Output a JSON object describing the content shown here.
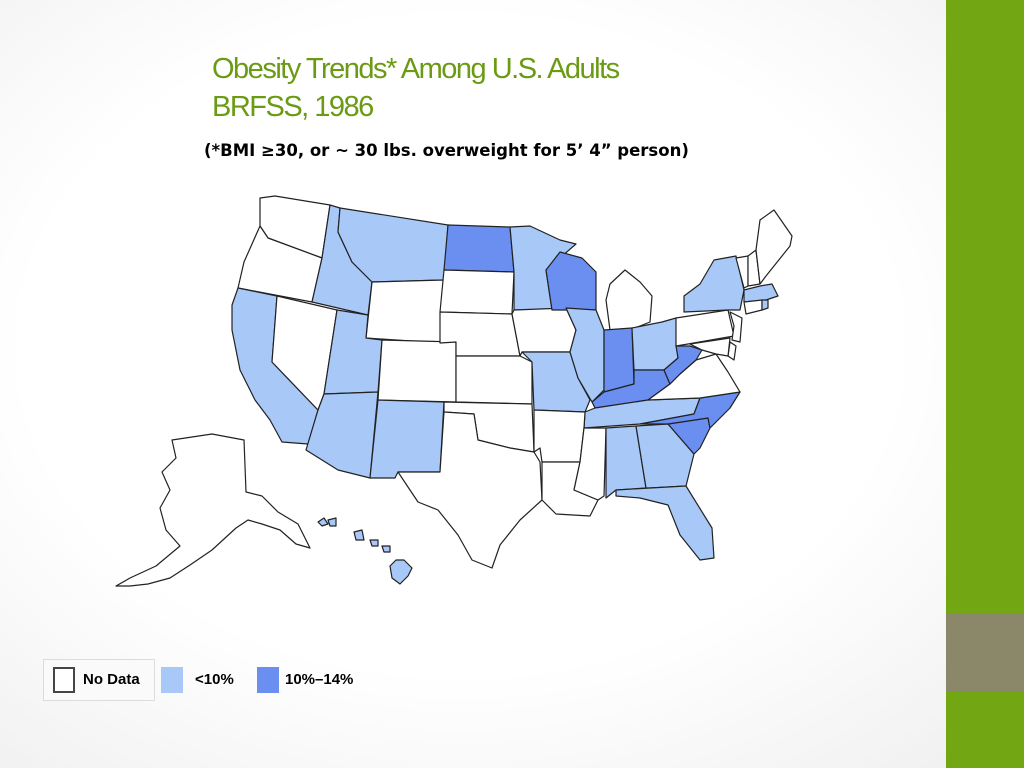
{
  "slide": {
    "title_line1": "Obesity Trends* Among U.S. Adults",
    "title_line2": "BRFSS, 1986",
    "subtitle": "(*BMI ≥30, or ~ 30 lbs. overweight for 5’ 4” person)"
  },
  "colors": {
    "no_data": "#ffffff",
    "lt10": "#a8c8f8",
    "b10_14": "#6a8ff0",
    "accent_green": "#72a612",
    "accent_gray": "#8a8868",
    "title_green": "#6b9a14"
  },
  "legend": [
    {
      "label": "No Data",
      "category": "no_data"
    },
    {
      "label": "<10%",
      "category": "lt10"
    },
    {
      "label": "10%–14%",
      "category": "b10_14"
    }
  ],
  "map_data": {
    "no_data": [
      "WA",
      "OR",
      "NV",
      "WY",
      "CO",
      "SD",
      "NE",
      "KS",
      "OK",
      "TX",
      "IA",
      "AR",
      "LA",
      "MS",
      "MI",
      "PA",
      "NJ",
      "DE",
      "MD",
      "VA",
      "VT",
      "NH",
      "ME",
      "CT",
      "AK"
    ],
    "lt10": [
      "CA",
      "ID",
      "MT",
      "UT",
      "AZ",
      "NM",
      "MN",
      "MO",
      "IL",
      "OH",
      "NY",
      "MA",
      "RI",
      "TN",
      "AL",
      "GA",
      "FL",
      "HI"
    ],
    "b10_14": [
      "ND",
      "WI",
      "IN",
      "KY",
      "WV",
      "NC",
      "SC"
    ]
  }
}
